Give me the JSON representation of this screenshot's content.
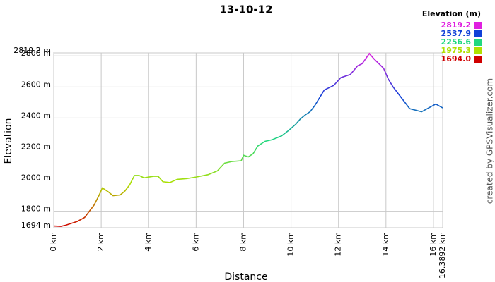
{
  "chart_data": {
    "type": "line",
    "title": "13-10-12",
    "x_label": "Distance",
    "y_label": "Elevation",
    "credit": "created by GPSVisualizer.com",
    "legend_title": "Elevation (m)",
    "color_stops": [
      {
        "value": 2819.2,
        "color": "#e020e0"
      },
      {
        "value": 2537.9,
        "color": "#1040d8"
      },
      {
        "value": 2256.6,
        "color": "#20d880"
      },
      {
        "value": 1975.3,
        "color": "#b0e000"
      },
      {
        "value": 1694,
        "label": "1694.0",
        "color": "#d00000"
      }
    ],
    "xlim": [
      0,
      16.3892
    ],
    "ylim": [
      1694,
      2819.2
    ],
    "xticks": [
      {
        "value": 0,
        "label": "0 km"
      },
      {
        "value": 2,
        "label": "2 km"
      },
      {
        "value": 4,
        "label": "4 km"
      },
      {
        "value": 6,
        "label": "6 km"
      },
      {
        "value": 8,
        "label": "8 km"
      },
      {
        "value": 10,
        "label": "10 km"
      },
      {
        "value": 12,
        "label": "12 km"
      },
      {
        "value": 14,
        "label": "14 km"
      },
      {
        "value": 16,
        "label": "16 km"
      },
      {
        "value": 16.3892,
        "label": "16.3892 km"
      }
    ],
    "yticks": [
      {
        "value": 1694,
        "label": "1694 m"
      },
      {
        "value": 1800,
        "label": "1800 m"
      },
      {
        "value": 2000,
        "label": "2000 m"
      },
      {
        "value": 2200,
        "label": "2200 m"
      },
      {
        "value": 2400,
        "label": "2400 m"
      },
      {
        "value": 2600,
        "label": "2600 m"
      },
      {
        "value": 2800,
        "label": "2800 m"
      },
      {
        "value": 2819.2,
        "label": "2819.2 m"
      }
    ],
    "grid": true,
    "x": [
      0,
      0.3,
      0.5,
      1.0,
      1.3,
      1.5,
      1.7,
      1.9,
      2.05,
      2.3,
      2.5,
      2.8,
      3.0,
      3.2,
      3.4,
      3.6,
      3.8,
      4.2,
      4.4,
      4.6,
      4.9,
      5.2,
      5.6,
      6.0,
      6.5,
      6.9,
      7.2,
      7.5,
      7.9,
      8.0,
      8.2,
      8.4,
      8.6,
      8.9,
      9.2,
      9.6,
      9.9,
      10.2,
      10.4,
      10.6,
      10.8,
      11.0,
      11.4,
      11.8,
      12.1,
      12.5,
      12.8,
      13.0,
      13.3,
      13.5,
      13.9,
      14.1,
      14.3,
      14.6,
      15.0,
      15.5,
      15.8,
      16.1,
      16.3892
    ],
    "values": [
      1705,
      1703,
      1710,
      1735,
      1760,
      1800,
      1840,
      1900,
      1950,
      1925,
      1900,
      1905,
      1930,
      1970,
      2030,
      2030,
      2015,
      2025,
      2025,
      1990,
      1985,
      2005,
      2010,
      2020,
      2035,
      2060,
      2110,
      2120,
      2125,
      2160,
      2150,
      2170,
      2220,
      2250,
      2260,
      2285,
      2320,
      2360,
      2395,
      2420,
      2440,
      2480,
      2580,
      2610,
      2660,
      2680,
      2735,
      2750,
      2815,
      2780,
      2720,
      2650,
      2600,
      2540,
      2460,
      2440,
      2465,
      2490,
      2465
    ]
  }
}
